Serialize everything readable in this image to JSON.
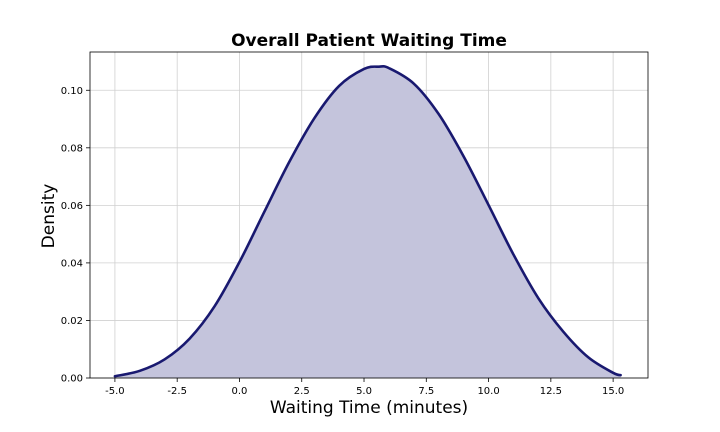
{
  "chart_data": {
    "type": "area",
    "title": "Overall Patient Waiting Time",
    "xlabel": "Waiting Time (minutes)",
    "ylabel": "Density",
    "xlim": [
      -6.0,
      16.4
    ],
    "ylim": [
      0.0,
      0.1133
    ],
    "xticks": [
      -5.0,
      -2.5,
      0.0,
      2.5,
      5.0,
      7.5,
      10.0,
      12.5,
      15.0
    ],
    "xtick_labels": [
      "-5.0",
      "-2.5",
      "0.0",
      "2.5",
      "5.0",
      "7.5",
      "10.0",
      "12.5",
      "15.0"
    ],
    "yticks": [
      0.0,
      0.02,
      0.04,
      0.06,
      0.08,
      0.1
    ],
    "ytick_labels": [
      "0.00",
      "0.02",
      "0.04",
      "0.06",
      "0.08",
      "0.10"
    ],
    "grid": true,
    "line_color": "#191970",
    "fill_color": "#c4c4dc",
    "series": [
      {
        "x": [
          -5.0,
          -4.0,
          -3.0,
          -2.0,
          -1.0,
          0.0,
          1.0,
          2.0,
          3.0,
          4.0,
          5.0,
          5.6,
          6.0,
          7.0,
          8.0,
          9.0,
          10.0,
          11.0,
          12.0,
          13.0,
          14.0,
          15.0,
          15.3
        ],
        "y": [
          0.0006,
          0.0025,
          0.0065,
          0.0137,
          0.0249,
          0.0403,
          0.0578,
          0.0751,
          0.0902,
          0.1015,
          0.1074,
          0.1082,
          0.1077,
          0.1023,
          0.0917,
          0.077,
          0.0601,
          0.0429,
          0.0277,
          0.0161,
          0.0072,
          0.0018,
          0.001
        ]
      }
    ]
  }
}
